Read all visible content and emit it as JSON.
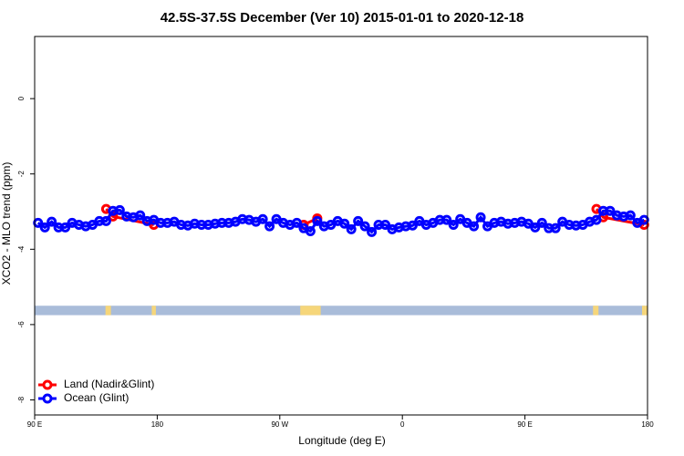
{
  "chart_data": {
    "type": "line",
    "title": "42.5S-37.5S December (Ver 10)   2015-01-01 to 2020-12-18",
    "xlabel": "Longitude (deg E)",
    "ylabel": "XCO2 - MLO trend (ppm)",
    "xlim": [
      90,
      540
    ],
    "ylim": [
      -8.4,
      1.65
    ],
    "xticks": [
      {
        "value": 90,
        "label": "90 E"
      },
      180,
      {
        "value": 270,
        "label": "90 W"
      },
      {
        "value": 360,
        "label": "0"
      },
      {
        "value": 450,
        "label": "90 E"
      },
      {
        "value": 540,
        "label": "180"
      }
    ],
    "yticks": [
      0,
      -2,
      -4,
      -6,
      -8
    ],
    "legend": "bottomleft",
    "surface_band": {
      "ylim": [
        -5.75,
        -5.5
      ],
      "color": "#a9bcd9",
      "land_color": "#f6d67a",
      "land": [
        [
          142,
          146
        ],
        [
          176,
          179
        ],
        [
          285,
          300
        ],
        [
          500,
          504
        ],
        [
          536,
          540
        ]
      ]
    },
    "series": [
      {
        "name": "Land (Nadir&Glint)",
        "color": "#ff0000",
        "x": [
          142.5,
          147.5,
          177.5,
          230,
          287.5,
          297.5,
          400,
          502.5,
          507.5,
          537.5
        ],
        "values": [
          -2.93,
          -3.13,
          -3.35,
          null,
          -3.35,
          -3.18,
          null,
          -2.93,
          -3.15,
          -3.35
        ]
      },
      {
        "name": "Ocean (Glint)",
        "color": "#0000ff",
        "x": [
          92.5,
          97.5,
          102.5,
          107.5,
          112.5,
          117.5,
          122.5,
          127.5,
          132.5,
          137.5,
          142.5,
          147.5,
          152.5,
          157.5,
          162.5,
          167.5,
          172.5,
          177.5,
          182.5,
          187.5,
          192.5,
          197.5,
          202.5,
          207.5,
          212.5,
          217.5,
          222.5,
          227.5,
          232.5,
          237.5,
          242.5,
          247.5,
          252.5,
          257.5,
          262.5,
          267.5,
          272.5,
          277.5,
          282.5,
          287.5,
          292.5,
          297.5,
          302.5,
          307.5,
          312.5,
          317.5,
          322.5,
          327.5,
          332.5,
          337.5,
          342.5,
          347.5,
          352.5,
          357.5,
          362.5,
          367.5,
          372.5,
          377.5,
          382.5,
          387.5,
          392.5,
          397.5,
          402.5,
          407.5,
          412.5,
          417.5,
          422.5,
          427.5,
          432.5,
          437.5,
          442.5,
          447.5,
          452.5,
          457.5,
          462.5,
          467.5,
          472.5,
          477.5,
          482.5,
          487.5,
          492.5,
          497.5,
          502.5,
          507.5,
          512.5,
          517.5,
          522.5,
          527.5,
          532.5,
          537.5
        ],
        "values": [
          -3.3,
          -3.42,
          -3.27,
          -3.42,
          -3.42,
          -3.3,
          -3.35,
          -3.39,
          -3.35,
          -3.25,
          -3.25,
          -2.98,
          -2.96,
          -3.13,
          -3.15,
          -3.1,
          -3.25,
          -3.22,
          -3.3,
          -3.3,
          -3.27,
          -3.35,
          -3.37,
          -3.32,
          -3.35,
          -3.35,
          -3.32,
          -3.3,
          -3.3,
          -3.27,
          -3.2,
          -3.22,
          -3.27,
          -3.2,
          -3.39,
          -3.2,
          -3.3,
          -3.35,
          -3.3,
          -3.44,
          -3.52,
          -3.25,
          -3.39,
          -3.35,
          -3.25,
          -3.32,
          -3.47,
          -3.25,
          -3.39,
          -3.54,
          -3.35,
          -3.35,
          -3.47,
          -3.42,
          -3.39,
          -3.37,
          -3.25,
          -3.35,
          -3.3,
          -3.22,
          -3.22,
          -3.35,
          -3.2,
          -3.3,
          -3.39,
          -3.15,
          -3.39,
          -3.3,
          -3.27,
          -3.32,
          -3.3,
          -3.27,
          -3.32,
          -3.42,
          -3.3,
          -3.44,
          -3.44,
          -3.27,
          -3.35,
          -3.37,
          -3.35,
          -3.27,
          -3.22,
          -2.98,
          -2.98,
          -3.1,
          -3.13,
          -3.1,
          -3.3,
          -3.22
        ]
      }
    ]
  }
}
